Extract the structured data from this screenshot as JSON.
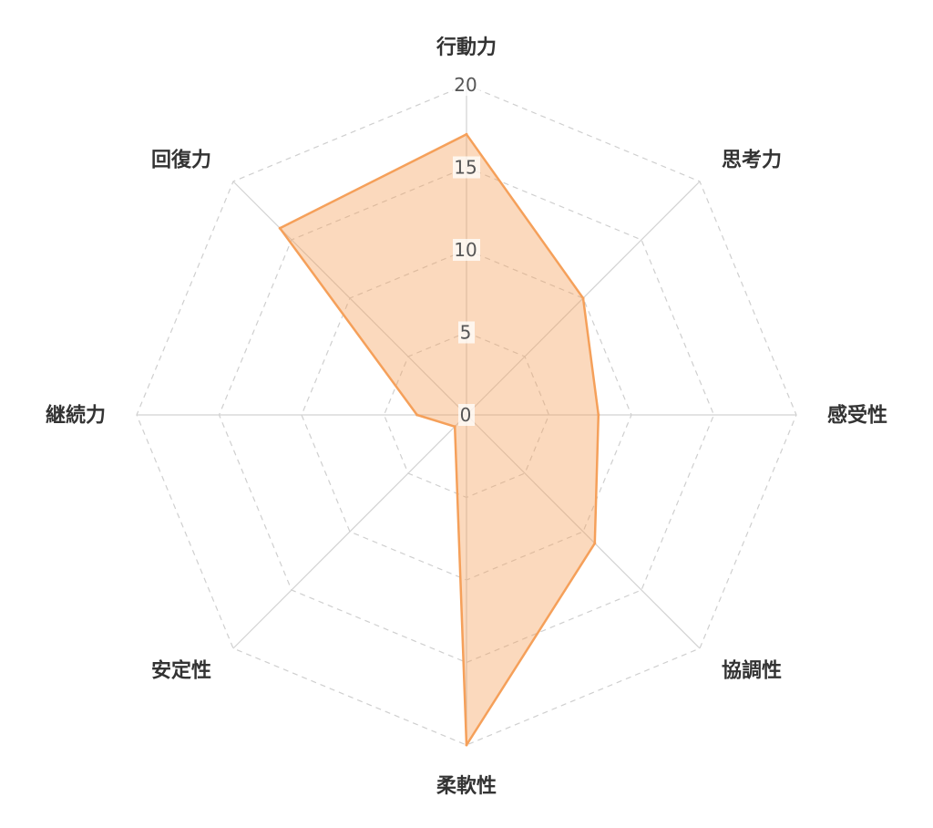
{
  "chart_data": {
    "type": "radar",
    "categories": [
      "行動力",
      "思考力",
      "感受性",
      "協調性",
      "柔軟性",
      "安定性",
      "継続力",
      "回復力"
    ],
    "series": [
      {
        "values": [
          17,
          10,
          8,
          11,
          20,
          1,
          3,
          16
        ]
      }
    ],
    "rlim": [
      0,
      20
    ],
    "ticks": [
      0,
      5,
      10,
      15,
      20
    ],
    "grid": true,
    "colors": {
      "line": "#f5a05a",
      "fill": "rgba(245,160,90,0.4)",
      "grid": "#cfcfcf",
      "angle_lines": "#d2d2d2"
    }
  }
}
